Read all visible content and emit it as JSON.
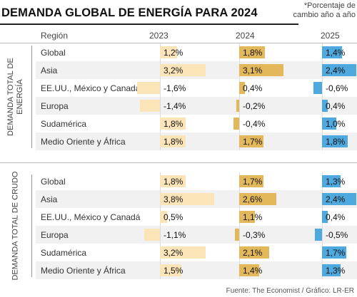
{
  "title": "DEMANDA GLOBAL DE ENERGÍA PARA 2024",
  "note": "*Porcentaje de cambio año a año",
  "source": "Fuente: The Economist / Gráfico: LR-ER",
  "header": {
    "region": "Región",
    "years": [
      "2023",
      "2024",
      "2025"
    ]
  },
  "chart_data": {
    "type": "table",
    "title": "DEMANDA GLOBAL DE ENERGÍA PARA 2024",
    "columns": [
      "2023",
      "2024",
      "2025"
    ],
    "colors": {
      "2023": "#fbe4b7",
      "2024": "#e2b85a",
      "2025": "#4ea9de"
    },
    "sections": [
      {
        "name": "DEMANDA TOTAL DE ENERGÍA",
        "rows": [
          {
            "region": "Global",
            "values": [
              1.2,
              1.8,
              1.4
            ],
            "labels": [
              "1,2%",
              "1,8%",
              "1,4%"
            ]
          },
          {
            "region": "Asia",
            "values": [
              3.2,
              3.1,
              2.4
            ],
            "labels": [
              "3,2%",
              "3,1%",
              "2,4%"
            ]
          },
          {
            "region": "EE.UU., México y Canadá",
            "values": [
              -1.6,
              0.4,
              -0.6
            ],
            "labels": [
              "-1,6%",
              "0,4%",
              "-0,6%"
            ]
          },
          {
            "region": "Europa",
            "values": [
              -1.4,
              -0.2,
              0.4
            ],
            "labels": [
              "-1,4%",
              "-0,2%",
              "0,4%"
            ]
          },
          {
            "region": "Sudamérica",
            "values": [
              1.8,
              -0.4,
              1.0
            ],
            "labels": [
              "1,8%",
              "-0,4%",
              "1,0%"
            ]
          },
          {
            "region": "Medio Oriente y África",
            "values": [
              1.8,
              1.7,
              1.8
            ],
            "labels": [
              "1,8%",
              "1,7%",
              "1,8%"
            ]
          }
        ]
      },
      {
        "name": "DEMANDA TOTAL DE CRUDO",
        "rows": [
          {
            "region": "Global",
            "values": [
              1.8,
              1.7,
              1.3
            ],
            "labels": [
              "1,8%",
              "1,7%",
              "1,3%"
            ]
          },
          {
            "region": "Asia",
            "values": [
              3.8,
              2.6,
              2.4
            ],
            "labels": [
              "3,8%",
              "2,6%",
              "2,4%"
            ]
          },
          {
            "region": "EE.UU., México y Canadá",
            "values": [
              0.5,
              1.1,
              0.4
            ],
            "labels": [
              "0,5%",
              "1,1%",
              "0,4%"
            ]
          },
          {
            "region": "Europa",
            "values": [
              -1.1,
              -0.3,
              -0.5
            ],
            "labels": [
              "-1,1%",
              "-0,3%",
              "-0,5%"
            ]
          },
          {
            "region": "Sudamérica",
            "values": [
              3.2,
              2.1,
              1.7
            ],
            "labels": [
              "3,2%",
              "2,1%",
              "1,7%"
            ]
          },
          {
            "region": "Medio Oriente y África",
            "values": [
              1.5,
              1.4,
              1.3
            ],
            "labels": [
              "1,5%",
              "1,4%",
              "1,3%"
            ]
          }
        ]
      }
    ]
  }
}
